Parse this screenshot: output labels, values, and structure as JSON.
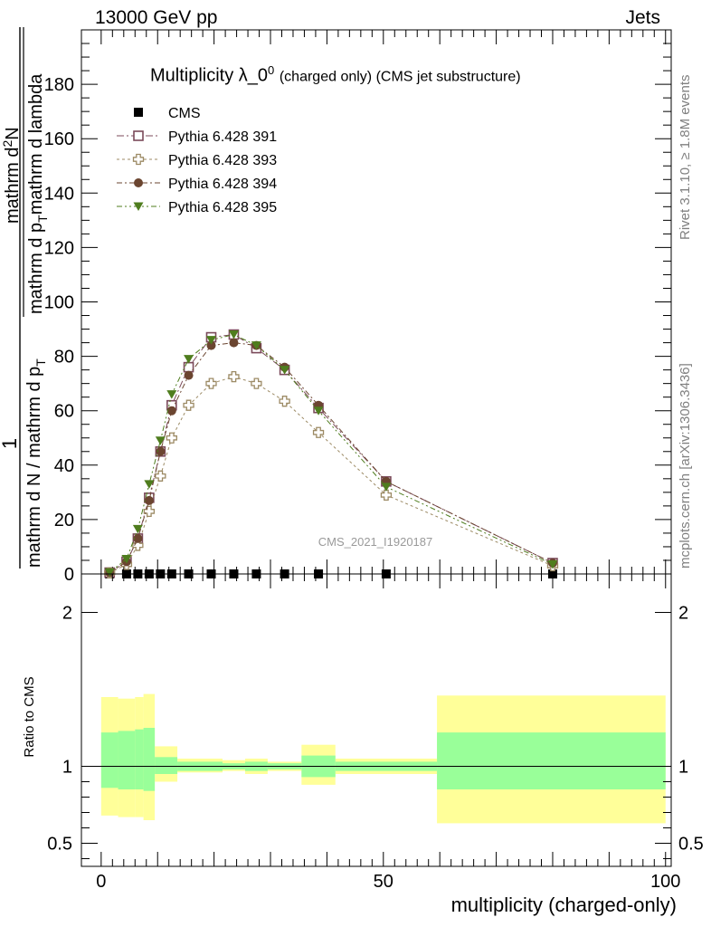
{
  "header": {
    "left": "13000 GeV pp",
    "right": "Jets"
  },
  "side_text": {
    "rivet": "Rivet 3.1.10, ≥ 1.8M events",
    "mcplots": "mcplots.cern.ch [arXiv:1306.3436]"
  },
  "watermark": "CMS_2021_I1920187",
  "colors": {
    "cms": "#000000",
    "p391": "#7b4a5a",
    "p393": "#9c8a64",
    "p394": "#6b4530",
    "p395": "#4f7d1e",
    "band_outer": "#ffff99",
    "band_inner": "#99ff99"
  },
  "chart_data": [
    {
      "type": "line",
      "title": "Multiplicity λ_0^0 (charged only) (CMS jet substructure)",
      "title_main": "Multiplicity λ_0",
      "title_sup": "0",
      "title_small": "(charged only) (CMS jet substructure)",
      "ylabel": "1 / mathrm d N / mathrm d p_T mathrm d p_T mathrm d lambda · mathrm d^2N",
      "ylabel_parts": {
        "one": "1",
        "denominator": "mathrm d N / mathrm d p",
        "den_sub": "T",
        "numerator_a": "mathrm d",
        "numerator_sup": "2",
        "numerator_b": "N",
        "denominator2_a": "mathrm d p",
        "denominator2_sub": "T",
        "denominator2_b": "mathrm d lambda"
      },
      "xlim": [
        -3.5,
        101
      ],
      "ylim": [
        0,
        200
      ],
      "yticks": [
        0,
        20,
        40,
        60,
        80,
        100,
        120,
        140,
        160,
        180
      ],
      "legend_position": "top-left",
      "series": [
        {
          "name": "CMS",
          "marker": "filled-square",
          "x": [
            1.5,
            4.5,
            6.5,
            8.5,
            10.5,
            12.5,
            15.5,
            19.5,
            23.5,
            27.5,
            32.5,
            38.5,
            50.5,
            80
          ],
          "y": [
            0,
            0,
            0,
            0,
            0,
            0,
            0,
            0,
            0,
            0,
            0,
            0,
            0,
            0
          ]
        },
        {
          "name": "Pythia 6.428 391",
          "marker": "open-square",
          "x": [
            1.5,
            4.5,
            6.5,
            8.5,
            10.5,
            12.5,
            15.5,
            19.5,
            23.5,
            27.5,
            32.5,
            38.5,
            50.5,
            80
          ],
          "y": [
            0.5,
            4.5,
            13,
            28,
            45,
            62,
            76,
            87,
            88,
            83,
            75,
            61,
            34,
            4
          ]
        },
        {
          "name": "Pythia 6.428 393",
          "marker": "open-cross",
          "x": [
            1.5,
            4.5,
            6.5,
            8.5,
            10.5,
            12.5,
            15.5,
            19.5,
            23.5,
            27.5,
            32.5,
            38.5,
            50.5,
            80
          ],
          "y": [
            0.4,
            3.5,
            10.5,
            23,
            36,
            50,
            62,
            70,
            72.5,
            70,
            63.5,
            52,
            29,
            3
          ]
        },
        {
          "name": "Pythia 6.428 394",
          "marker": "filled-circle",
          "x": [
            1.5,
            4.5,
            6.5,
            8.5,
            10.5,
            12.5,
            15.5,
            19.5,
            23.5,
            27.5,
            32.5,
            38.5,
            50.5,
            80
          ],
          "y": [
            0.5,
            4.5,
            13,
            27,
            45,
            60,
            73,
            84,
            85,
            84,
            76,
            62,
            34,
            4
          ]
        },
        {
          "name": "Pythia 6.428 395",
          "marker": "filled-triangle-down",
          "x": [
            1.5,
            4.5,
            6.5,
            8.5,
            10.5,
            12.5,
            15.5,
            19.5,
            23.5,
            27.5,
            32.5,
            38.5,
            50.5,
            80
          ],
          "y": [
            0.6,
            5.5,
            16.5,
            33,
            49,
            66,
            79,
            86,
            88,
            84,
            75,
            60,
            32,
            3.5
          ]
        }
      ]
    },
    {
      "type": "area",
      "ylabel": "Ratio to CMS",
      "xlabel": "multiplicity (charged-only)",
      "xlim": [
        -3.5,
        101
      ],
      "ylim": [
        0.35,
        2.25
      ],
      "yticks_labeled": [
        0.5,
        1,
        2
      ],
      "xticks_labeled": [
        0,
        50,
        100
      ],
      "reference_line": 1,
      "bands": [
        {
          "x0": 0,
          "x1": 3,
          "outer": [
            0.68,
            1.45
          ],
          "inner": [
            0.86,
            1.22
          ]
        },
        {
          "x0": 3,
          "x1": 6,
          "outer": [
            0.67,
            1.44
          ],
          "inner": [
            0.85,
            1.23
          ]
        },
        {
          "x0": 6,
          "x1": 7.5,
          "outer": [
            0.67,
            1.45
          ],
          "inner": [
            0.85,
            1.24
          ]
        },
        {
          "x0": 7.5,
          "x1": 9.5,
          "outer": [
            0.65,
            1.47
          ],
          "inner": [
            0.84,
            1.25
          ]
        },
        {
          "x0": 9.5,
          "x1": 13.5,
          "outer": [
            0.9,
            1.13
          ],
          "inner": [
            0.95,
            1.06
          ]
        },
        {
          "x0": 13.5,
          "x1": 21.5,
          "outer": [
            0.96,
            1.05
          ],
          "inner": [
            0.97,
            1.03
          ]
        },
        {
          "x0": 21.5,
          "x1": 25.5,
          "outer": [
            0.97,
            1.04
          ],
          "inner": [
            0.98,
            1.02
          ]
        },
        {
          "x0": 25.5,
          "x1": 29.5,
          "outer": [
            0.95,
            1.05
          ],
          "inner": [
            0.97,
            1.03
          ]
        },
        {
          "x0": 29.5,
          "x1": 35.5,
          "outer": [
            0.97,
            1.03
          ],
          "inner": [
            0.98,
            1.02
          ]
        },
        {
          "x0": 35.5,
          "x1": 41.5,
          "outer": [
            0.88,
            1.14
          ],
          "inner": [
            0.93,
            1.07
          ]
        },
        {
          "x0": 41.5,
          "x1": 59.5,
          "outer": [
            0.95,
            1.05
          ],
          "inner": [
            0.97,
            1.03
          ]
        },
        {
          "x0": 59.5,
          "x1": 100,
          "outer": [
            0.63,
            1.46
          ],
          "inner": [
            0.85,
            1.22
          ]
        }
      ]
    }
  ]
}
